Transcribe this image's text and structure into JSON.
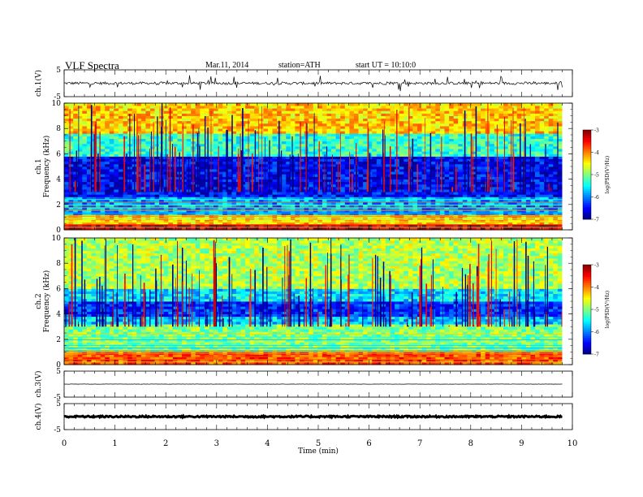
{
  "header": {
    "title": "VLF  Spectra",
    "date": "Mar.11, 2014",
    "station": "station=ATH",
    "start": "start  UT =   10:10:0"
  },
  "chart_data": [
    {
      "type": "line",
      "panel": "waveform-ch1",
      "ylabel": "ch.1(V)",
      "ylim": [
        -5,
        5
      ],
      "yticks": [
        "5",
        "-5"
      ],
      "xlim": [
        0,
        10
      ],
      "data_end_min": 9.8,
      "series": [
        {
          "values_description_free": true,
          "baseline": 0.0,
          "typical_amplitude": 0.5,
          "spike_amplitude": 3.0
        }
      ]
    },
    {
      "type": "heatmap",
      "panel": "spectrogram-ch1",
      "ylabel_lines": [
        "ch.1",
        "Frequency  (kHz)"
      ],
      "ylim": [
        0,
        10
      ],
      "yticks": [
        "0",
        "2",
        "4",
        "6",
        "8",
        "10"
      ],
      "xlim": [
        0,
        10
      ],
      "data_end_min": 9.8,
      "bands_khz_log_psd": [
        [
          0,
          0.4,
          -3.3
        ],
        [
          0.4,
          1.2,
          -4.3
        ],
        [
          1.2,
          2.6,
          -5.9
        ],
        [
          2.6,
          5.8,
          -6.5
        ],
        [
          5.8,
          7.6,
          -5.3
        ],
        [
          7.6,
          10,
          -4.3
        ]
      ],
      "colorbar": {
        "label": "log(PSD(V²/Hz)",
        "range": [
          -7,
          -3
        ],
        "ticks": [
          "-3",
          "-4",
          "-5",
          "-6",
          "-7"
        ]
      }
    },
    {
      "type": "heatmap",
      "panel": "spectrogram-ch2",
      "ylabel_lines": [
        "ch.2",
        "Frequency  (kHz)"
      ],
      "ylim": [
        0,
        10
      ],
      "yticks": [
        "0",
        "2",
        "4",
        "6",
        "8",
        "10"
      ],
      "xlim": [
        0,
        10
      ],
      "data_end_min": 9.8,
      "bands_khz_log_psd": [
        [
          0,
          1.0,
          -3.8
        ],
        [
          1.0,
          3.2,
          -5.0
        ],
        [
          3.2,
          3.8,
          -5.7
        ],
        [
          3.8,
          5.0,
          -6.3
        ],
        [
          5.0,
          6.0,
          -5.6
        ],
        [
          6.0,
          10,
          -4.8
        ]
      ],
      "colorbar": {
        "label": "log(PSD(V²/Hz)",
        "range": [
          -7,
          -3
        ],
        "ticks": [
          "-3",
          "-4",
          "-5",
          "-6",
          "-7"
        ]
      }
    },
    {
      "type": "line",
      "panel": "waveform-ch3",
      "ylabel": "ch.3(V)",
      "ylim": [
        -5,
        5
      ],
      "yticks": [
        "5",
        "-5"
      ],
      "xlim": [
        0,
        10
      ],
      "data_end_min": 9.8,
      "series": [
        {
          "baseline": 0.0,
          "typical_amplitude": 0.05
        }
      ]
    },
    {
      "type": "line",
      "panel": "waveform-ch4",
      "ylabel": "ch.4(V)",
      "ylim": [
        -5,
        5
      ],
      "yticks": [
        "5",
        "-5"
      ],
      "xlim": [
        0,
        10
      ],
      "data_end_min": 9.8,
      "series": [
        {
          "baseline": 0.0,
          "typical_amplitude": 0.3
        }
      ]
    }
  ],
  "xaxis": {
    "label": "Time  (min)",
    "ticks": [
      "0",
      "1",
      "2",
      "3",
      "4",
      "5",
      "6",
      "7",
      "8",
      "9",
      "10"
    ]
  }
}
